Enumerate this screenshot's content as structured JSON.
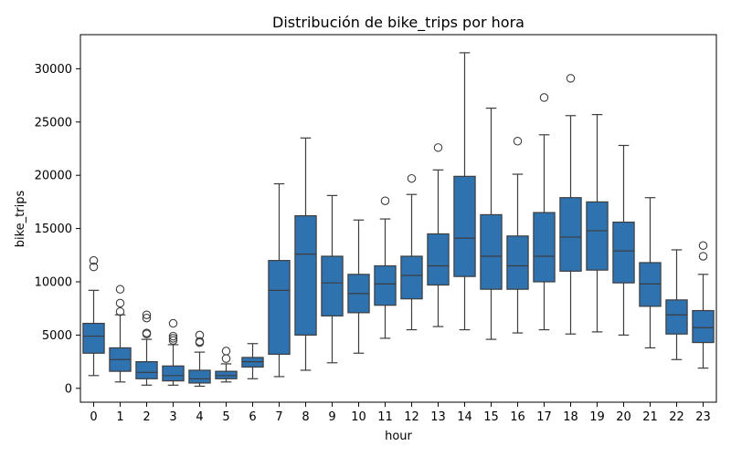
{
  "chart_data": {
    "type": "box",
    "title": "Distribución de bike_trips por hora",
    "xlabel": "hour",
    "ylabel": "bike_trips",
    "categories": [
      "0",
      "1",
      "2",
      "3",
      "4",
      "5",
      "6",
      "7",
      "8",
      "9",
      "10",
      "11",
      "12",
      "13",
      "14",
      "15",
      "16",
      "17",
      "18",
      "19",
      "20",
      "21",
      "22",
      "23"
    ],
    "ylim": [
      -1300,
      33200
    ],
    "yticks": [
      0,
      5000,
      10000,
      15000,
      20000,
      25000,
      30000
    ],
    "color": "#2f72b0",
    "grid": false,
    "boxes": [
      {
        "category": "0",
        "whislo": 1200,
        "q1": 3300,
        "median": 4900,
        "q3": 6100,
        "whishi": 9200,
        "fliers": [
          11400,
          12000
        ]
      },
      {
        "category": "1",
        "whislo": 600,
        "q1": 1600,
        "median": 2700,
        "q3": 3800,
        "whishi": 6900,
        "fliers": [
          7200,
          8000,
          9300
        ]
      },
      {
        "category": "2",
        "whislo": 300,
        "q1": 900,
        "median": 1500,
        "q3": 2500,
        "whishi": 4600,
        "fliers": [
          5100,
          5200,
          6600,
          6900
        ]
      },
      {
        "category": "3",
        "whislo": 300,
        "q1": 700,
        "median": 1200,
        "q3": 2100,
        "whishi": 4100,
        "fliers": [
          4500,
          4700,
          4900,
          6100
        ]
      },
      {
        "category": "4",
        "whislo": 200,
        "q1": 500,
        "median": 900,
        "q3": 1700,
        "whishi": 3400,
        "fliers": [
          4300,
          4400,
          5000
        ]
      },
      {
        "category": "5",
        "whislo": 600,
        "q1": 900,
        "median": 1200,
        "q3": 1600,
        "whishi": 2300,
        "fliers": [
          2800,
          3500
        ]
      },
      {
        "category": "6",
        "whislo": 900,
        "q1": 2000,
        "median": 2500,
        "q3": 2900,
        "whishi": 4200,
        "fliers": []
      },
      {
        "category": "7",
        "whislo": 1100,
        "q1": 3200,
        "median": 9200,
        "q3": 12000,
        "whishi": 19200,
        "fliers": []
      },
      {
        "category": "8",
        "whislo": 1700,
        "q1": 5000,
        "median": 12600,
        "q3": 16200,
        "whishi": 23500,
        "fliers": []
      },
      {
        "category": "9",
        "whislo": 2400,
        "q1": 6800,
        "median": 9900,
        "q3": 12400,
        "whishi": 18100,
        "fliers": []
      },
      {
        "category": "10",
        "whislo": 3300,
        "q1": 7100,
        "median": 8900,
        "q3": 10700,
        "whishi": 15800,
        "fliers": []
      },
      {
        "category": "11",
        "whislo": 4700,
        "q1": 7800,
        "median": 9800,
        "q3": 11500,
        "whishi": 15900,
        "fliers": [
          17600
        ]
      },
      {
        "category": "12",
        "whislo": 5500,
        "q1": 8400,
        "median": 10600,
        "q3": 12400,
        "whishi": 18200,
        "fliers": [
          19700
        ]
      },
      {
        "category": "13",
        "whislo": 5800,
        "q1": 9700,
        "median": 11500,
        "q3": 14500,
        "whishi": 20500,
        "fliers": [
          22600
        ]
      },
      {
        "category": "14",
        "whislo": 5500,
        "q1": 10500,
        "median": 14100,
        "q3": 19900,
        "whishi": 31500,
        "fliers": []
      },
      {
        "category": "15",
        "whislo": 4600,
        "q1": 9300,
        "median": 12400,
        "q3": 16300,
        "whishi": 26300,
        "fliers": []
      },
      {
        "category": "16",
        "whislo": 5200,
        "q1": 9300,
        "median": 11500,
        "q3": 14300,
        "whishi": 20100,
        "fliers": [
          23200
        ]
      },
      {
        "category": "17",
        "whislo": 5500,
        "q1": 10000,
        "median": 12400,
        "q3": 16500,
        "whishi": 23800,
        "fliers": [
          27300
        ]
      },
      {
        "category": "18",
        "whislo": 5100,
        "q1": 11000,
        "median": 14200,
        "q3": 17900,
        "whishi": 25600,
        "fliers": [
          29100
        ]
      },
      {
        "category": "19",
        "whislo": 5300,
        "q1": 11100,
        "median": 14800,
        "q3": 17500,
        "whishi": 25700,
        "fliers": []
      },
      {
        "category": "20",
        "whislo": 5000,
        "q1": 9900,
        "median": 12900,
        "q3": 15600,
        "whishi": 22800,
        "fliers": []
      },
      {
        "category": "21",
        "whislo": 3800,
        "q1": 7700,
        "median": 9800,
        "q3": 11800,
        "whishi": 17900,
        "fliers": []
      },
      {
        "category": "22",
        "whislo": 2700,
        "q1": 5100,
        "median": 6900,
        "q3": 8300,
        "whishi": 13000,
        "fliers": []
      },
      {
        "category": "23",
        "whislo": 1900,
        "q1": 4300,
        "median": 5700,
        "q3": 7300,
        "whishi": 10700,
        "fliers": [
          12400,
          13400
        ]
      }
    ]
  }
}
